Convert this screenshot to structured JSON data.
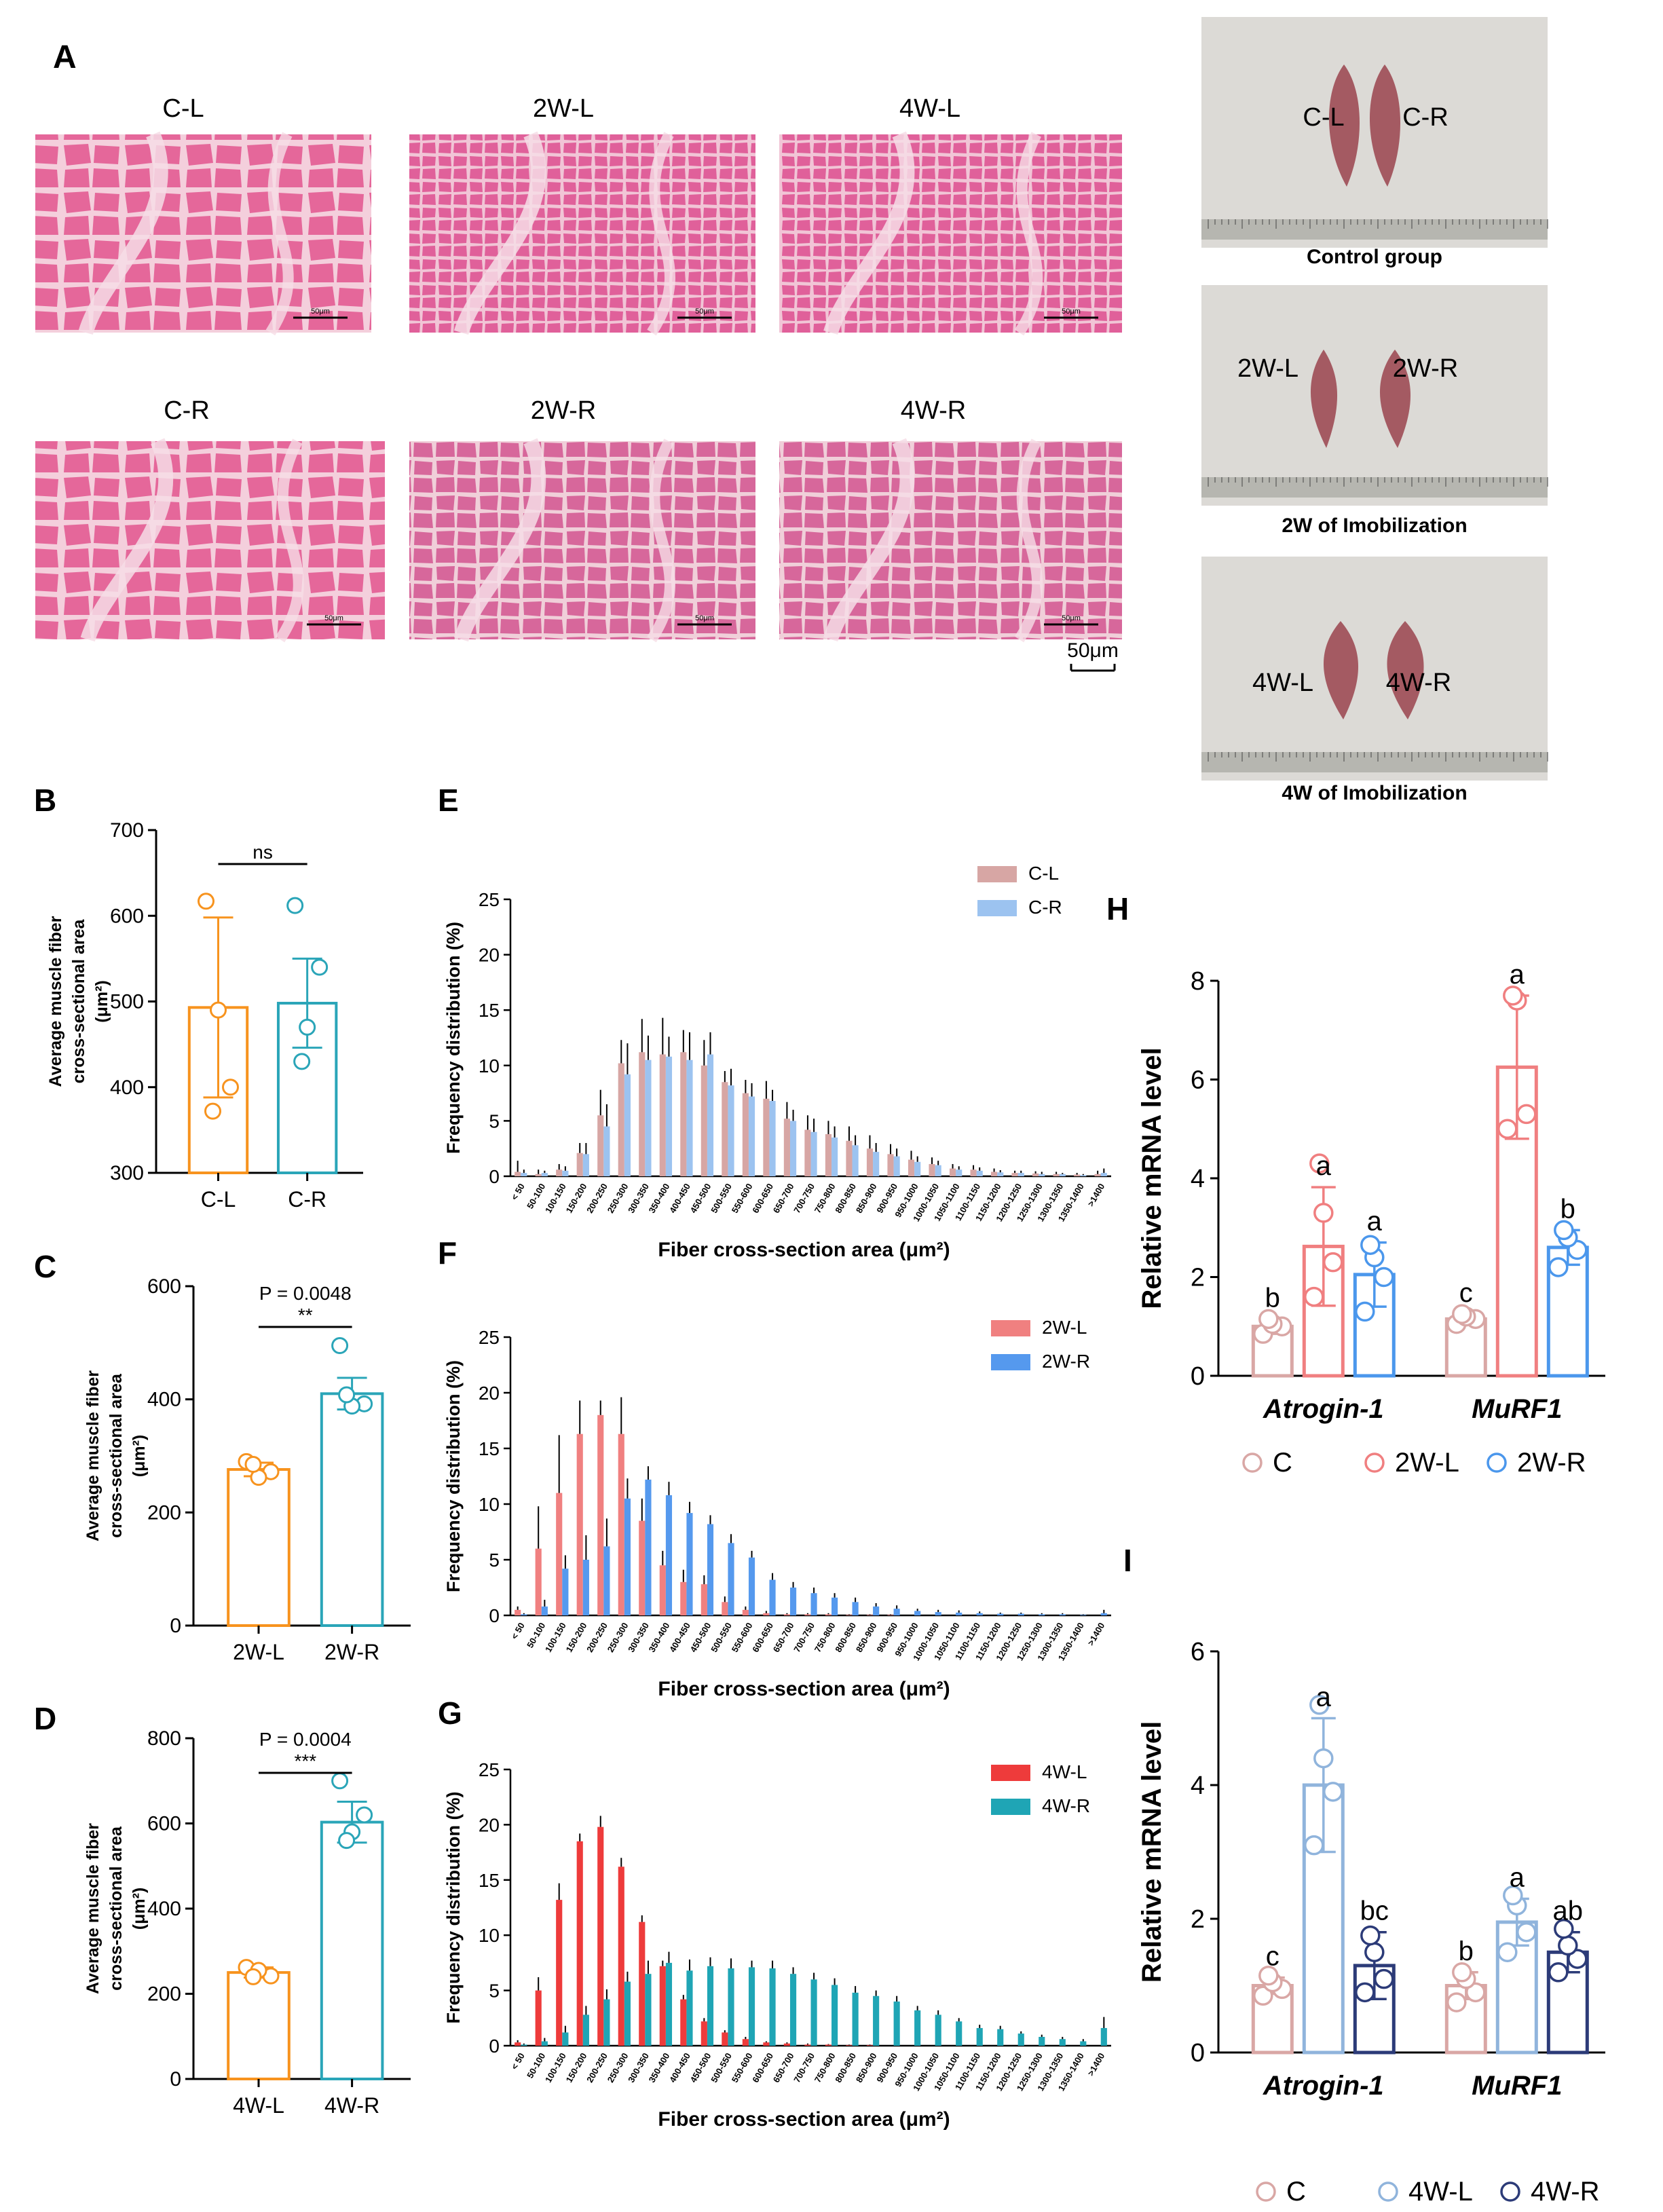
{
  "panelA": {
    "letter": "A",
    "scale_label": "50μm",
    "micro_scale_label": "50μm",
    "histology": [
      {
        "label": "C-L"
      },
      {
        "label": "2W-L"
      },
      {
        "label": "4W-L"
      },
      {
        "label": "C-R"
      },
      {
        "label": "2W-R"
      },
      {
        "label": "4W-R"
      }
    ],
    "photos": [
      {
        "caption": "Control group",
        "left": "C-L",
        "right": "C-R"
      },
      {
        "caption": "2W of Imobilization",
        "left": "2W-L",
        "right": "2W-R"
      },
      {
        "caption": "4W of Imobilization",
        "left": "4W-L",
        "right": "4W-R"
      }
    ],
    "colors": {
      "he_pink": "#e46a9a",
      "he_light": "#f3c9d8",
      "ruler": "#b6b6b0",
      "cloth": "#dcdad6",
      "muscle": "#a45a62"
    }
  },
  "chart_data": [
    {
      "id": "B",
      "letter": "B",
      "type": "bar",
      "ylabel": [
        "Average muscle fiber",
        "cross-sectional area",
        "(μm²)"
      ],
      "ylim": [
        300,
        700
      ],
      "yticks": [
        300,
        400,
        500,
        600,
        700
      ],
      "categories": [
        "C-L",
        "C-R"
      ],
      "values": [
        493,
        498
      ],
      "sem": [
        105,
        52
      ],
      "points": [
        [
          617,
          400,
          490,
          372
        ],
        [
          612,
          540,
          470,
          430
        ]
      ],
      "colors": [
        "#f7931e",
        "#2aa5b8"
      ],
      "sig": {
        "text": "ns",
        "p": ""
      }
    },
    {
      "id": "C",
      "letter": "C",
      "type": "bar",
      "ylabel": [
        "Average muscle fiber",
        "cross-sectional area",
        "(μm²)"
      ],
      "ylim": [
        0,
        600
      ],
      "yticks": [
        0,
        200,
        400,
        600
      ],
      "categories": [
        "2W-L",
        "2W-R"
      ],
      "values": [
        276,
        410
      ],
      "sem": [
        12,
        28
      ],
      "points": [
        [
          290,
          272,
          262,
          285
        ],
        [
          495,
          392,
          388,
          408
        ]
      ],
      "colors": [
        "#f7931e",
        "#2aa5b8"
      ],
      "sig": {
        "text": "**",
        "p": "P = 0.0048"
      }
    },
    {
      "id": "D",
      "letter": "D",
      "type": "bar",
      "ylabel": [
        "Average muscle fiber",
        "cross-sectional area",
        "(μm²)"
      ],
      "ylim": [
        0,
        800
      ],
      "yticks": [
        0,
        200,
        400,
        600,
        800
      ],
      "categories": [
        "4W-L",
        "4W-R"
      ],
      "values": [
        250,
        603
      ],
      "sem": [
        12,
        48
      ],
      "points": [
        [
          262,
          242,
          255,
          240
        ],
        [
          700,
          620,
          580,
          560
        ]
      ],
      "colors": [
        "#f7931e",
        "#2aa5b8"
      ],
      "sig": {
        "text": "***",
        "p": "P = 0.0004"
      }
    },
    {
      "id": "E",
      "letter": "E",
      "type": "bar",
      "ylabel": "Frequency distribution (%)",
      "xlabel": "Fiber cross-section area (μm²)",
      "ylim": [
        0,
        25
      ],
      "yticks": [
        0,
        5,
        10,
        15,
        20,
        25
      ],
      "categories": [
        "< 50",
        "50-100",
        "100-150",
        "150-200",
        "200-250",
        "250-300",
        "300-350",
        "350-400",
        "400-450",
        "450-500",
        "500-550",
        "550-600",
        "600-650",
        "650-700",
        "700-750",
        "750-800",
        "800-850",
        "850-900",
        "900-950",
        "950-1000",
        "1000-1050",
        "1050-1100",
        "1100-1150",
        "1150-1200",
        "1200-1250",
        "1250-1300",
        "1300-1350",
        "1350-1400",
        ">1400"
      ],
      "series": [
        {
          "name": "C-L",
          "color": "#d7a6a4",
          "values": [
            0.4,
            0.2,
            0.6,
            2.1,
            5.5,
            10.2,
            11.2,
            11.0,
            11.2,
            10.0,
            8.5,
            7.5,
            7.0,
            5.2,
            4.2,
            3.8,
            3.2,
            2.5,
            2.0,
            1.5,
            1.1,
            0.7,
            0.6,
            0.4,
            0.3,
            0.25,
            0.2,
            0.15,
            0.2
          ],
          "err": [
            1.0,
            0.4,
            0.5,
            0.9,
            2.3,
            2.1,
            3.0,
            3.3,
            2.0,
            2.3,
            1.0,
            1.2,
            1.6,
            1.5,
            1.3,
            1.2,
            1.3,
            1.2,
            0.9,
            0.8,
            0.6,
            0.4,
            0.4,
            0.3,
            0.2,
            0.2,
            0.2,
            0.15,
            0.3
          ]
        },
        {
          "name": "C-R",
          "color": "#9cc3f0",
          "values": [
            0.3,
            0.3,
            0.5,
            2.0,
            4.5,
            9.2,
            10.5,
            10.8,
            10.5,
            11.0,
            8.2,
            7.2,
            6.8,
            5.0,
            4.0,
            3.5,
            2.8,
            2.2,
            1.8,
            1.3,
            1.0,
            0.6,
            0.5,
            0.35,
            0.3,
            0.2,
            0.2,
            0.1,
            0.3
          ],
          "err": [
            0.3,
            0.2,
            0.4,
            1.0,
            2.0,
            2.8,
            2.2,
            1.8,
            2.5,
            2.0,
            1.5,
            1.2,
            1.0,
            1.0,
            1.2,
            1.0,
            0.9,
            0.8,
            0.7,
            0.5,
            0.4,
            0.3,
            0.3,
            0.2,
            0.2,
            0.2,
            0.1,
            0.1,
            0.4
          ]
        }
      ]
    },
    {
      "id": "F",
      "letter": "F",
      "type": "bar",
      "ylabel": "Frequency distribution (%)",
      "xlabel": "Fiber cross-section area (μm²)",
      "ylim": [
        0,
        25
      ],
      "yticks": [
        0,
        5,
        10,
        15,
        20,
        25
      ],
      "categories": [
        "< 50",
        "50-100",
        "100-150",
        "150-200",
        "200-250",
        "250-300",
        "300-350",
        "350-400",
        "400-450",
        "450-500",
        "500-550",
        "550-600",
        "600-650",
        "650-700",
        "700-750",
        "750-800",
        "800-850",
        "850-900",
        "900-950",
        "950-1000",
        "1000-1050",
        "1050-1100",
        "1100-1150",
        "1150-1200",
        "1200-1250",
        "1250-1300",
        "1300-1350",
        "1350-1400",
        ">1400"
      ],
      "series": [
        {
          "name": "2W-L",
          "color": "#f08080",
          "values": [
            0.5,
            6.0,
            11.0,
            16.3,
            18.0,
            16.3,
            8.5,
            4.5,
            3.0,
            2.8,
            1.2,
            0.5,
            0.2,
            0.1,
            0.1,
            0.1,
            0.05,
            0.05,
            0.05,
            0,
            0,
            0,
            0,
            0,
            0,
            0,
            0,
            0,
            0
          ],
          "err": [
            0.3,
            3.8,
            5.2,
            3.0,
            1.3,
            3.3,
            2.0,
            1.3,
            1.1,
            0.8,
            0.5,
            0.3,
            0.2,
            0.1,
            0.1,
            0.1,
            0.05,
            0.05,
            0.05,
            0,
            0,
            0,
            0,
            0,
            0,
            0,
            0,
            0,
            0
          ]
        },
        {
          "name": "2W-R",
          "color": "#5599ee",
          "values": [
            0.1,
            0.8,
            4.2,
            5.0,
            6.2,
            10.5,
            12.2,
            10.8,
            9.2,
            8.2,
            6.5,
            5.2,
            3.2,
            2.5,
            2.0,
            1.6,
            1.2,
            0.8,
            0.6,
            0.4,
            0.3,
            0.25,
            0.2,
            0.15,
            0.15,
            0.1,
            0.1,
            0.05,
            0.2
          ],
          "err": [
            0.1,
            0.6,
            1.2,
            2.2,
            2.5,
            1.8,
            1.2,
            1.2,
            1.0,
            0.8,
            0.8,
            0.6,
            0.6,
            0.5,
            0.5,
            0.4,
            0.4,
            0.3,
            0.3,
            0.2,
            0.2,
            0.2,
            0.15,
            0.1,
            0.1,
            0.1,
            0.1,
            0.05,
            0.3
          ]
        }
      ]
    },
    {
      "id": "G",
      "letter": "G",
      "type": "bar",
      "ylabel": "Frequency distribution (%)",
      "xlabel": "Fiber cross-section area (μm²)",
      "ylim": [
        0,
        25
      ],
      "yticks": [
        0,
        5,
        10,
        15,
        20,
        25
      ],
      "categories": [
        "< 50",
        "50-100",
        "100-150",
        "150-200",
        "200-250",
        "250-300",
        "300-350",
        "350-400",
        "400-450",
        "450-500",
        "500-550",
        "550-600",
        "600-650",
        "650-700",
        "700-750",
        "750-800",
        "800-850",
        "850-900",
        "900-950",
        "950-1000",
        "1000-1050",
        "1050-1100",
        "1100-1150",
        "1150-1200",
        "1200-1250",
        "1250-1300",
        "1300-1350",
        "1350-1400",
        ">1400"
      ],
      "series": [
        {
          "name": "4W-L",
          "color": "#ee3b3b",
          "values": [
            0.3,
            5.0,
            13.2,
            18.5,
            19.8,
            16.2,
            11.2,
            7.2,
            4.2,
            2.2,
            1.2,
            0.6,
            0.3,
            0.2,
            0.1,
            0.1,
            0.05,
            0.05,
            0,
            0,
            0,
            0,
            0,
            0,
            0,
            0,
            0,
            0,
            0
          ],
          "err": [
            0.2,
            1.2,
            1.5,
            0.7,
            1.0,
            0.8,
            0.6,
            0.5,
            0.4,
            0.3,
            0.2,
            0.2,
            0.1,
            0.1,
            0.1,
            0.05,
            0.05,
            0.05,
            0,
            0,
            0,
            0,
            0,
            0,
            0,
            0,
            0,
            0,
            0
          ]
        },
        {
          "name": "4W-R",
          "color": "#1fa5b5",
          "values": [
            0.1,
            0.4,
            1.2,
            2.8,
            4.2,
            5.8,
            6.5,
            7.5,
            6.8,
            7.2,
            7.0,
            7.1,
            7.0,
            6.5,
            6.0,
            5.5,
            4.8,
            4.5,
            4.0,
            3.2,
            2.8,
            2.2,
            1.6,
            1.5,
            1.1,
            0.8,
            0.6,
            0.4,
            1.6
          ],
          "err": [
            0.1,
            0.3,
            0.6,
            0.8,
            0.9,
            0.9,
            1.2,
            1.0,
            1.0,
            0.8,
            0.9,
            0.6,
            0.7,
            0.6,
            0.6,
            0.6,
            0.6,
            0.5,
            0.5,
            0.4,
            0.4,
            0.3,
            0.3,
            0.3,
            0.2,
            0.2,
            0.2,
            0.2,
            1.0
          ]
        }
      ]
    },
    {
      "id": "H",
      "letter": "H",
      "type": "bar",
      "ylabel": "Relative mRNA level",
      "ylim": [
        0,
        8
      ],
      "yticks": [
        0,
        2,
        4,
        6,
        8
      ],
      "categories": [
        "Atrogin-1",
        "MuRF1"
      ],
      "series": [
        {
          "name": "C",
          "color": "#d9a7a5",
          "values": [
            1.0,
            1.15
          ],
          "err": [
            0.15,
            0.1
          ],
          "points": [
            [
              0.85,
              1.0,
              1.05,
              1.15
            ],
            [
              1.05,
              1.15,
              1.2,
              1.25
            ]
          ],
          "letters": [
            "b",
            "c"
          ]
        },
        {
          "name": "2W-L",
          "color": "#f07f80",
          "values": [
            2.62,
            6.25
          ],
          "err": [
            1.2,
            1.45
          ],
          "points": [
            [
              1.6,
              2.3,
              3.3,
              4.3
            ],
            [
              5.0,
              5.3,
              7.6,
              7.7
            ]
          ],
          "letters": [
            "a",
            "a"
          ]
        },
        {
          "name": "2W-R",
          "color": "#4b97ec",
          "values": [
            2.05,
            2.6
          ],
          "err": [
            0.65,
            0.35
          ],
          "points": [
            [
              1.3,
              2.0,
              2.4,
              2.65
            ],
            [
              2.2,
              2.55,
              2.8,
              2.95
            ]
          ],
          "letters": [
            "a",
            "b"
          ]
        }
      ]
    },
    {
      "id": "I",
      "letter": "I",
      "type": "bar",
      "ylabel": "Relative mRNA level",
      "ylim": [
        0,
        6
      ],
      "yticks": [
        0,
        2,
        4,
        6
      ],
      "categories": [
        "Atrogin-1",
        "MuRF1"
      ],
      "series": [
        {
          "name": "C",
          "color": "#d9a7a5",
          "values": [
            1.0,
            1.0
          ],
          "err": [
            0.12,
            0.2
          ],
          "points": [
            [
              0.85,
              0.95,
              1.05,
              1.15
            ],
            [
              0.75,
              0.9,
              1.1,
              1.2
            ]
          ],
          "letters": [
            "c",
            "b"
          ]
        },
        {
          "name": "4W-L",
          "color": "#90b4dc",
          "values": [
            4.0,
            1.95
          ],
          "err": [
            1.0,
            0.35
          ],
          "points": [
            [
              3.1,
              3.9,
              4.4,
              5.2
            ],
            [
              1.5,
              1.8,
              2.2,
              2.35
            ]
          ],
          "letters": [
            "a",
            "a"
          ]
        },
        {
          "name": "4W-R",
          "color": "#2c3b78",
          "values": [
            1.3,
            1.5
          ],
          "err": [
            0.5,
            0.3
          ],
          "points": [
            [
              0.9,
              1.1,
              1.5,
              1.75
            ],
            [
              1.2,
              1.4,
              1.6,
              1.85
            ]
          ],
          "letters": [
            "bc",
            "ab"
          ]
        }
      ]
    }
  ]
}
